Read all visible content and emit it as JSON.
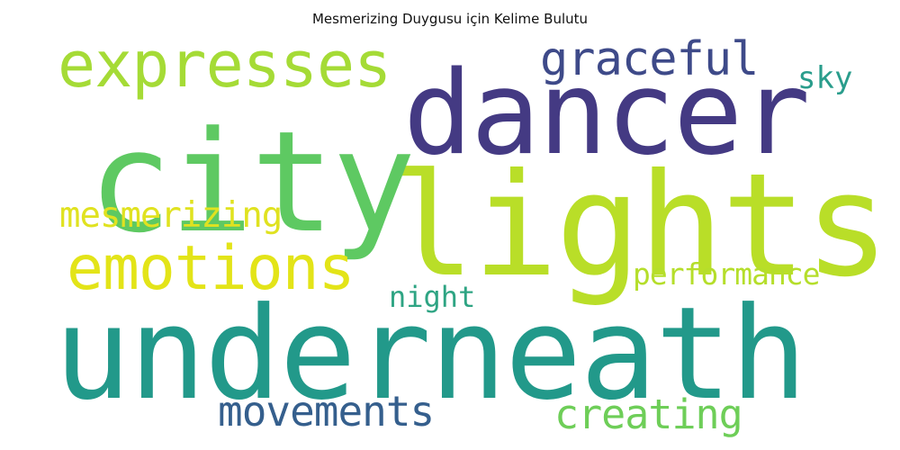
{
  "title": "Mesmerizing Duygusu için Kelime Bulutu",
  "words": [
    {
      "text": "underneath",
      "color": "#22998a"
    },
    {
      "text": "lights",
      "color": "#b9de28"
    },
    {
      "text": "dancer",
      "color": "#443a83"
    },
    {
      "text": "city",
      "color": "#5ec962"
    },
    {
      "text": "expresses",
      "color": "#a5db36"
    },
    {
      "text": "emotions",
      "color": "#e3e418"
    },
    {
      "text": "graceful",
      "color": "#3e4a89"
    },
    {
      "text": "sky",
      "color": "#2a9d8c"
    },
    {
      "text": "mesmerizing",
      "color": "#e0e220"
    },
    {
      "text": "performance",
      "color": "#b5de2b"
    },
    {
      "text": "night",
      "color": "#2ea483"
    },
    {
      "text": "movements",
      "color": "#355f8d"
    },
    {
      "text": "creating",
      "color": "#6ece58"
    }
  ]
}
